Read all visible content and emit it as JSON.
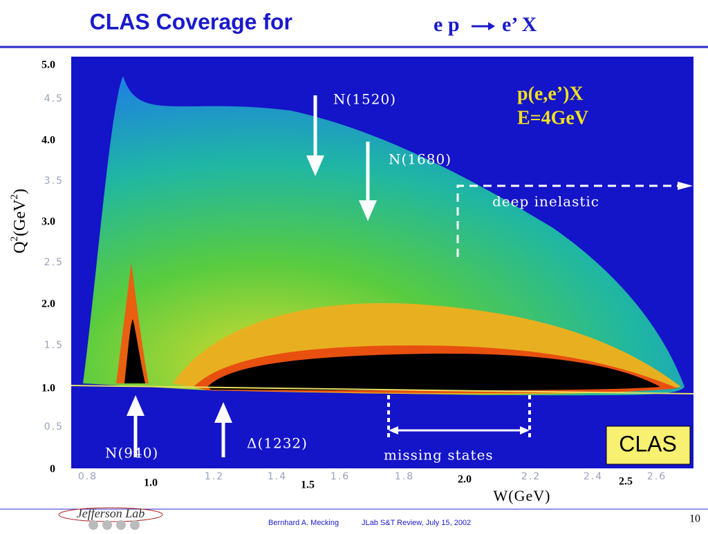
{
  "title": {
    "text": "CLAS Coverage for",
    "reaction_left": "e p",
    "reaction_right": "e’ X"
  },
  "plot": {
    "y_outer_ticks": [
      "5.0",
      "4.0",
      "3.0",
      "2.0",
      "1.0",
      "0"
    ],
    "y_inner_ticks": [
      "4.5",
      "3.5",
      "2.5",
      "1.5",
      "0.5"
    ],
    "x_inner_ticks": [
      "0.8",
      "1.2",
      "1.4",
      "1.6",
      "1.8",
      "2.2",
      "2.4",
      "2.6"
    ],
    "x_outer_ticks": [
      "1.0",
      "1.5",
      "2.0",
      "2.5"
    ],
    "y_label": {
      "q": "Q",
      "sup1": "2",
      "mid": "(GeV",
      "sup2": "2",
      "end": ")"
    },
    "x_label": "W(GeV)",
    "annotations": {
      "n1520": "N(1520)",
      "n1680": "N(1680)",
      "reaction": "p(e,e’)X",
      "energy": "E=4GeV",
      "deep_inelastic": "deep inelastic",
      "missing_states": "missing states",
      "n940": "N(940)",
      "delta1232": "Δ(1232)",
      "clas": "CLAS"
    }
  },
  "footer": {
    "logo": "Jefferson Lab",
    "author": "Bernhard A. Mecking",
    "event": "JLab S&T Review, July 15, 2002",
    "page": "10"
  }
}
